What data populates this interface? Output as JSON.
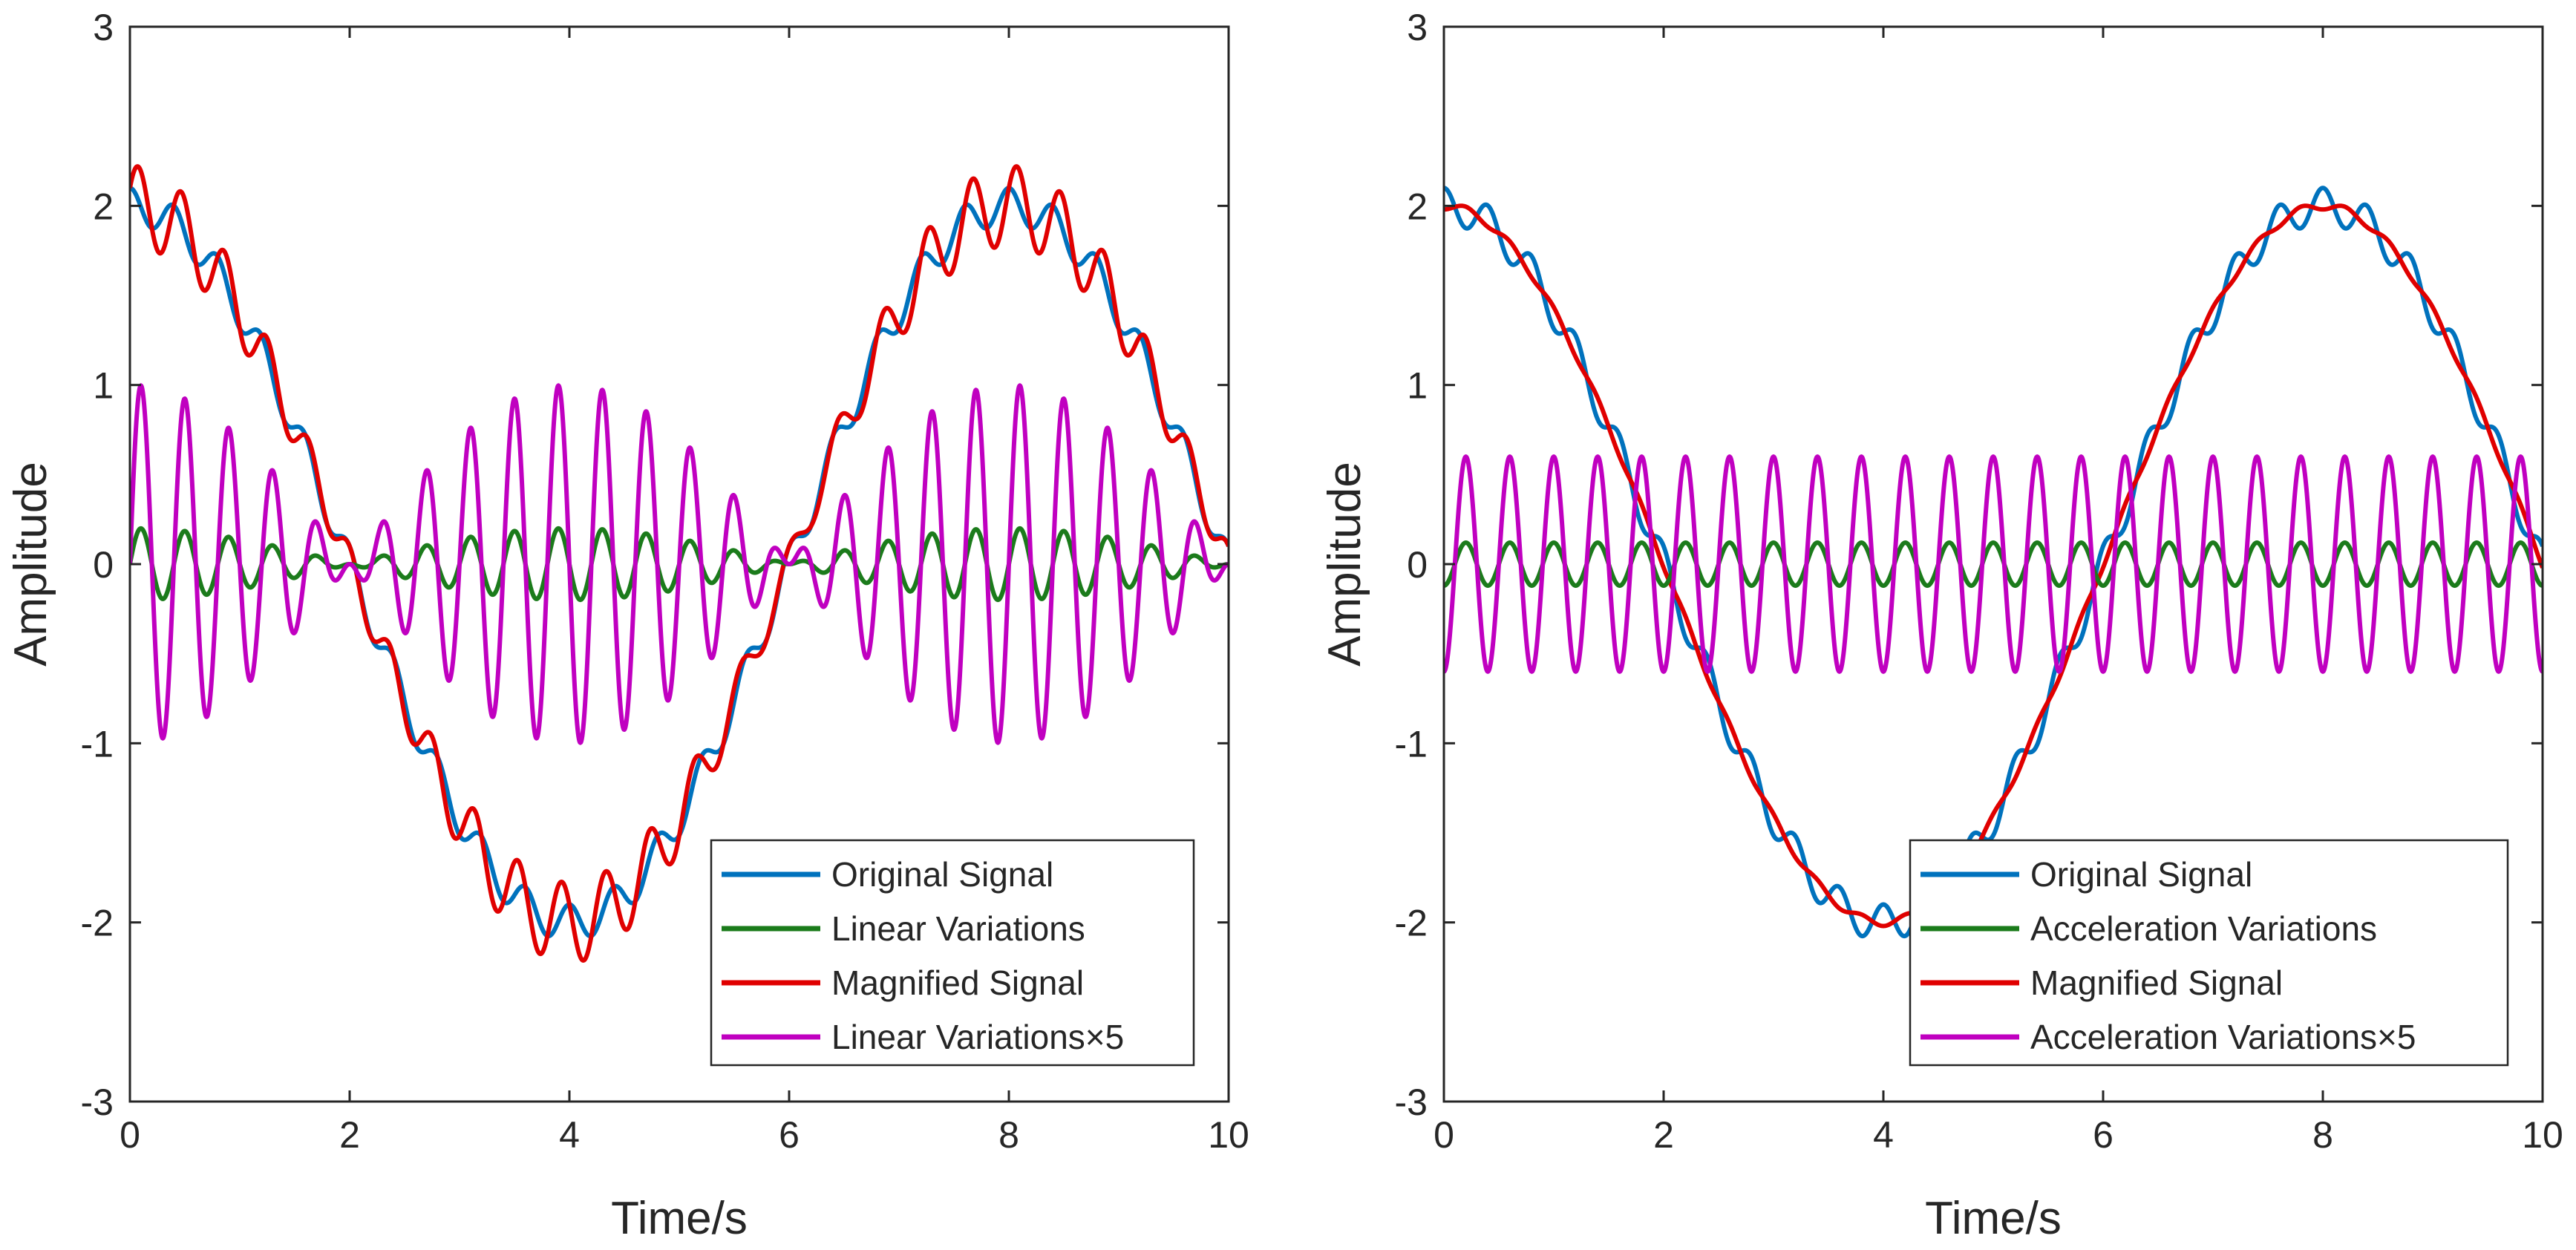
{
  "chart_data": [
    {
      "type": "line",
      "title": "",
      "xlabel": "Time/s",
      "ylabel": "Amplitude",
      "xlim": [
        0,
        10
      ],
      "ylim": [
        -3,
        3
      ],
      "xticks": [
        0,
        2,
        4,
        6,
        8,
        10
      ],
      "yticks": [
        -3,
        -2,
        -1,
        0,
        1,
        2,
        3
      ],
      "grid": false,
      "legend_position": "bottom-right",
      "series": [
        {
          "name": "Original Signal",
          "color": "#0072BD",
          "model": {
            "base_amp": 2.0,
            "base_freq": 0.125,
            "ripple_amp": 0.1,
            "ripple_freq": 2.5
          }
        },
        {
          "name": "Linear Variations",
          "color": "#1B7B1B",
          "model": {
            "variation_kind": "linear",
            "amp": 0.2,
            "freq": 2.5,
            "envelope_freq": 0.125
          }
        },
        {
          "name": "Magnified Signal",
          "color": "#E00000",
          "model": {
            "base_amp": 2.0,
            "base_freq": 0.125,
            "ripple_amp": 0.1,
            "ripple_freq": 2.5,
            "extra_kind": "linear",
            "extra_amp": 0.2
          }
        },
        {
          "name": "Linear Variations×5",
          "color": "#C000C0",
          "model": {
            "variation_kind": "linear",
            "amp": 1.0,
            "freq": 2.5,
            "envelope_freq": 0.125
          }
        }
      ]
    },
    {
      "type": "line",
      "title": "",
      "xlabel": "Time/s",
      "ylabel": "Amplitude",
      "xlim": [
        0,
        10
      ],
      "ylim": [
        -3,
        3
      ],
      "xticks": [
        0,
        2,
        4,
        6,
        8,
        10
      ],
      "yticks": [
        -3,
        -2,
        -1,
        0,
        1,
        2,
        3
      ],
      "grid": false,
      "legend_position": "bottom-right",
      "series": [
        {
          "name": "Original Signal",
          "color": "#0072BD",
          "model": {
            "base_amp": 2.0,
            "base_freq": 0.125,
            "ripple_amp": 0.1,
            "ripple_freq": 2.5
          }
        },
        {
          "name": "Acceleration Variations",
          "color": "#1B7B1B",
          "model": {
            "variation_kind": "acceleration",
            "amp": 0.12,
            "freq": 2.5
          }
        },
        {
          "name": "Magnified Signal",
          "color": "#E00000",
          "model": {
            "base_amp": 2.0,
            "base_freq": 0.125,
            "ripple_amp": 0.1,
            "ripple_freq": 2.5,
            "extra_kind": "acceleration",
            "extra_amp": 0.12
          }
        },
        {
          "name": "Acceleration Variations×5",
          "color": "#C000C0",
          "model": {
            "variation_kind": "acceleration",
            "amp": 0.6,
            "freq": 2.5
          }
        }
      ]
    }
  ]
}
